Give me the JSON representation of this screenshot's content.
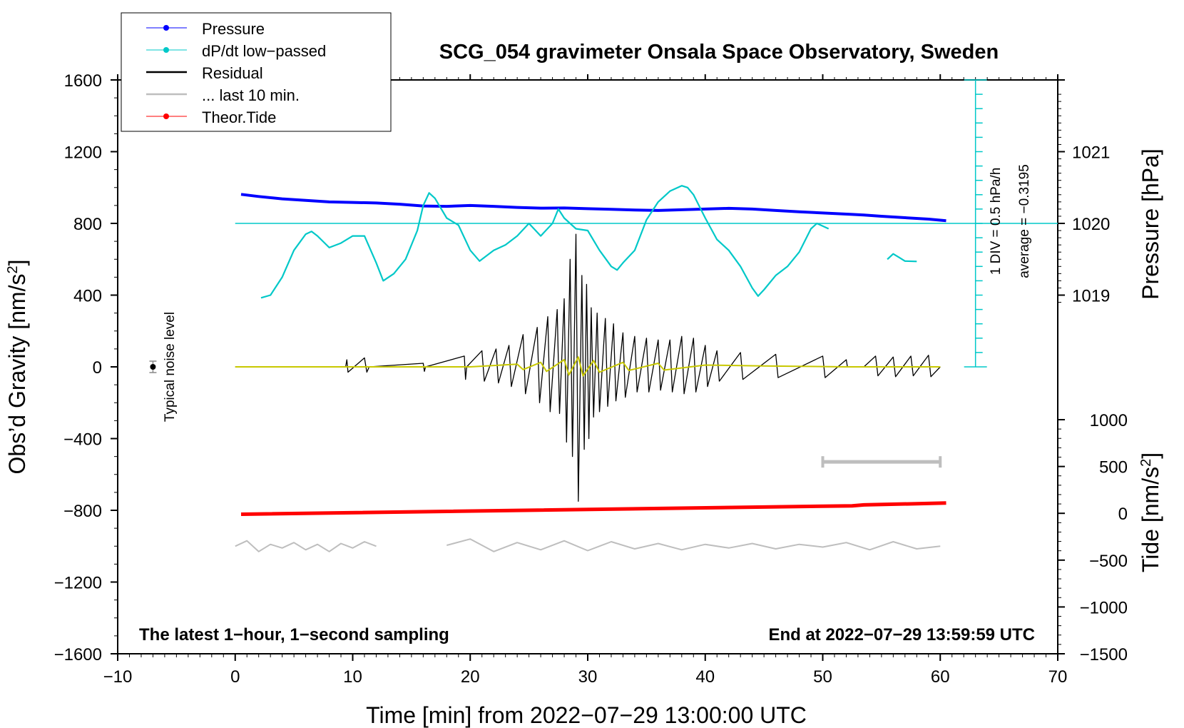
{
  "chart_data": {
    "type": "line",
    "title": "SCG_054 gravimeter Onsala Space Observatory, Sweden",
    "xlabel": "Time [min] from 2022−07−29 13:00:00 UTC",
    "ylabel": "Obs’d Gravity [nm/s",
    "ylabel_sup": "2",
    "ylabel_close": "]",
    "xlim": [
      -10,
      70
    ],
    "ylim": [
      -1600,
      1600
    ],
    "x_ticks": [
      -10,
      0,
      10,
      20,
      30,
      40,
      50,
      60,
      70
    ],
    "x_tick_labels": [
      "−10",
      "0",
      "10",
      "20",
      "30",
      "40",
      "50",
      "60",
      "70"
    ],
    "y_ticks": [
      1600,
      1200,
      800,
      400,
      0,
      -400,
      -800,
      -1200,
      -1600
    ],
    "y_tick_labels": [
      "1600",
      "1200",
      "800",
      "400",
      "0",
      "−400",
      "−800",
      "−1200",
      "−1600"
    ],
    "pressure_axis": {
      "label": "Pressure [hPa]",
      "ticks": [
        1021,
        1020,
        1019
      ],
      "tick_labels": [
        "1021",
        "1020",
        "1019"
      ],
      "gravity_at_1020": 800,
      "nms2_per_hpa": 400
    },
    "tide_axis": {
      "label": "Tide [nm/s",
      "label_sup": "2",
      "label_close": "]",
      "ticks": [
        1000,
        500,
        0,
        -500,
        -1000,
        -1500
      ],
      "tick_labels": [
        "1000",
        "500",
        "0",
        "−500",
        "−1000",
        "−1500"
      ],
      "range": [
        -1500,
        1000
      ]
    },
    "dpdt_scale": {
      "div_label": "1 DIV = 0.5 hPa/h",
      "average_label": "average = −0.3195",
      "zero_level": 800,
      "div_nms2": 80,
      "top": 1600,
      "bottom": 0
    },
    "noise_label": "Typical noise level",
    "noise_marker": {
      "x": -7,
      "y": 0
    },
    "bottom_left_note": "The latest 1−hour, 1−second sampling",
    "bottom_right_note": "End at 2022−07−29 13:59:59 UTC",
    "last10_bar": {
      "x_start": 50,
      "x_end": 60,
      "y": -530
    },
    "legend": [
      {
        "label": "Pressure",
        "color": "#0000ff",
        "style": "dot-line"
      },
      {
        "label": "dP/dt low−passed",
        "color": "#00c8c8",
        "style": "dot-line"
      },
      {
        "label": "Residual",
        "color": "#000000",
        "style": "line"
      },
      {
        "label": "... last 10 min.",
        "color": "#bebebe",
        "style": "line"
      },
      {
        "label": "Theor.Tide",
        "color": "#ff0000",
        "style": "dot-line"
      }
    ],
    "series": [
      {
        "name": "Pressure",
        "color": "#0000ff",
        "y_units": "gravity-equivalent",
        "x": [
          0.5,
          2,
          4,
          6,
          8,
          10,
          12,
          14,
          16,
          18,
          20,
          22,
          24,
          26,
          28,
          30,
          32,
          34,
          36,
          38,
          40,
          42,
          44,
          46,
          48,
          50,
          52.5,
          53.5,
          55,
          57,
          59,
          60.5
        ],
        "y": [
          962,
          950,
          937,
          928,
          920,
          917,
          914,
          907,
          897,
          895,
          900,
          895,
          889,
          885,
          886,
          882,
          879,
          875,
          872,
          876,
          880,
          884,
          880,
          872,
          865,
          858,
          850,
          847,
          840,
          832,
          824,
          815
        ]
      },
      {
        "name": "dP/dt low−passed",
        "color": "#00c8c8",
        "y_units": "gravity-equivalent",
        "x": [
          2.2,
          3,
          4,
          5,
          6,
          6.5,
          7,
          8,
          9,
          10,
          11,
          12,
          12.6,
          13.5,
          14.5,
          15.5,
          16,
          16.5,
          17,
          18,
          19,
          20,
          20.8,
          22,
          23,
          24,
          25,
          26,
          27,
          27.5,
          28,
          29,
          30,
          31,
          32,
          32.5,
          33,
          34,
          35,
          36,
          37,
          38,
          38.5,
          39,
          40,
          41,
          42,
          43,
          44,
          44.5,
          45,
          46,
          47,
          48,
          49,
          49.5,
          50.5
        ],
        "y": [
          385,
          400,
          500,
          650,
          740,
          755,
          730,
          665,
          690,
          730,
          730,
          580,
          480,
          520,
          600,
          760,
          900,
          970,
          940,
          830,
          790,
          650,
          590,
          650,
          680,
          730,
          800,
          730,
          800,
          880,
          830,
          770,
          760,
          650,
          560,
          540,
          580,
          650,
          820,
          920,
          980,
          1010,
          1000,
          960,
          830,
          710,
          650,
          560,
          440,
          395,
          430,
          510,
          560,
          640,
          770,
          800,
          770
        ]
      },
      {
        "name": "dP/dt low−passed (segment 2)",
        "color": "#00c8c8",
        "y_units": "gravity-equivalent",
        "x": [
          55.5,
          56,
          56.5,
          57,
          58
        ],
        "y": [
          600,
          630,
          610,
          590,
          588
        ]
      },
      {
        "name": "Residual",
        "color": "#000000",
        "x": [
          0,
          9.4,
          9.5,
          9.6,
          11,
          11.2,
          11.4,
          16,
          16.1,
          16.2,
          19.5,
          19.6,
          19.7,
          21,
          21.2,
          22.2,
          22.4,
          23.3,
          23.5,
          24.5,
          24.7,
          25.7,
          25.9,
          26.6,
          26.8,
          27.4,
          27.6,
          28,
          28.2,
          28.5,
          28.7,
          29,
          29.2,
          29.5,
          29.7,
          29.9,
          30.1,
          30.3,
          30.5,
          30.8,
          31,
          31.5,
          31.7,
          32.2,
          32.4,
          33,
          33.2,
          34,
          34.2,
          35,
          35.2,
          36,
          36.2,
          37,
          37.2,
          38,
          38.2,
          39,
          39.2,
          40,
          40.2,
          41,
          41.2,
          43,
          43.2,
          46,
          46.2,
          50,
          50.2,
          52,
          52.1
        ],
        "y": [
          0,
          0,
          40,
          -30,
          50,
          -30,
          0,
          20,
          -25,
          0,
          60,
          -70,
          0,
          90,
          -80,
          100,
          -90,
          120,
          -110,
          180,
          -150,
          220,
          -200,
          280,
          -250,
          320,
          -260,
          380,
          -420,
          600,
          -500,
          740,
          -750,
          510,
          -460,
          460,
          -400,
          330,
          -280,
          300,
          -250,
          270,
          -220,
          240,
          -190,
          190,
          -170,
          170,
          -140,
          160,
          -140,
          150,
          -130,
          150,
          -140,
          170,
          -150,
          160,
          -140,
          120,
          -110,
          90,
          -80,
          80,
          -70,
          70,
          -60,
          60,
          -60,
          40,
          0
        ]
      },
      {
        "name": "Residual (segment 2)",
        "color": "#000000",
        "x": [
          53.5,
          54.5,
          54.7,
          56,
          56.2,
          57.5,
          57.7,
          59,
          59.2,
          60
        ],
        "y": [
          0,
          60,
          -50,
          55,
          -55,
          60,
          -50,
          65,
          -55,
          0
        ]
      },
      {
        "name": "Residual low−passed",
        "color": "#c8c800",
        "x": [
          0,
          20,
          24,
          24.5,
          26,
          26.5,
          28,
          28.4,
          29.2,
          29.6,
          30.5,
          31,
          33,
          33.5,
          36,
          36.5,
          40,
          45,
          52,
          53.5,
          60
        ],
        "y": [
          0,
          0,
          15,
          -15,
          25,
          -25,
          40,
          -45,
          55,
          -50,
          35,
          -30,
          25,
          -20,
          20,
          -18,
          10,
          5,
          0,
          0,
          0
        ]
      },
      {
        "name": "Theor.Tide",
        "color": "#ff0000",
        "y_units": "tide axis nm/s2",
        "x": [
          0.5,
          52.5,
          53.5,
          60.5
        ],
        "y": [
          -10,
          80,
          90,
          110
        ]
      },
      {
        "name": "... last 10 min.",
        "color": "#bebebe",
        "x": [
          0,
          1,
          2,
          3,
          4,
          5,
          6,
          7,
          8,
          9,
          10,
          11,
          12
        ],
        "y": [
          -1000,
          -970,
          -1030,
          -990,
          -1010,
          -980,
          -1020,
          -990,
          -1030,
          -985,
          -1010,
          -975,
          -1000
        ]
      },
      {
        "name": "... last 10 min. (segment 2)",
        "color": "#bebebe",
        "x": [
          18,
          20,
          22,
          24,
          26,
          28,
          30,
          32,
          34,
          36,
          38,
          40,
          42,
          44,
          46,
          48,
          50,
          52,
          54,
          56,
          58,
          60
        ],
        "y": [
          -995,
          -960,
          -1030,
          -980,
          -1020,
          -970,
          -1025,
          -975,
          -1015,
          -985,
          -1020,
          -990,
          -1010,
          -985,
          -1015,
          -990,
          -1005,
          -980,
          -1020,
          -975,
          -1015,
          -1000
        ]
      }
    ]
  }
}
